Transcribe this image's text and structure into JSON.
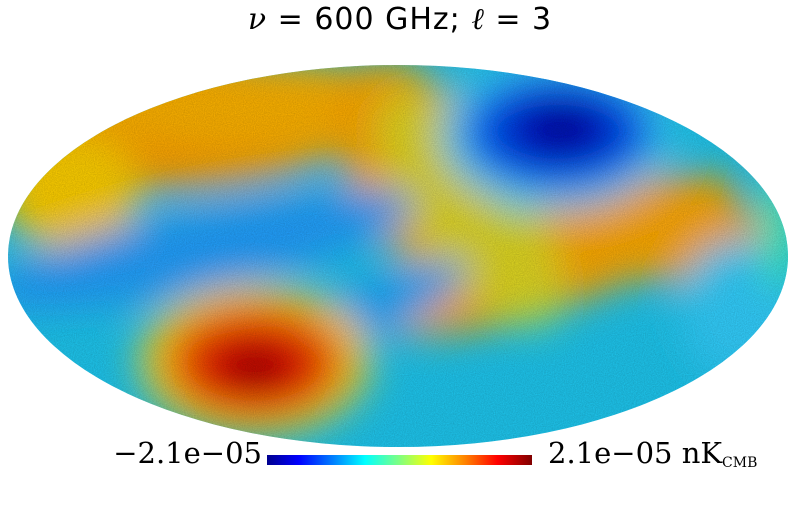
{
  "title": {
    "nu": "ν",
    "text": " = 600 GHz; ",
    "ell": "ℓ",
    "ell_eq": " = 3"
  },
  "colorbar": {
    "min_label": "−2.1e−05",
    "max_label": "2.1e−05",
    "unit_main": "nK",
    "unit_sub": "CMB",
    "colormap": "jet",
    "colors": [
      "#00008f",
      "#0000ff",
      "#0080ff",
      "#00ffff",
      "#80ff80",
      "#ffff00",
      "#ff8000",
      "#ff0000",
      "#800000"
    ]
  },
  "map": {
    "projection": "mollweide",
    "multipole": 3,
    "frequency": "600 GHz"
  }
}
